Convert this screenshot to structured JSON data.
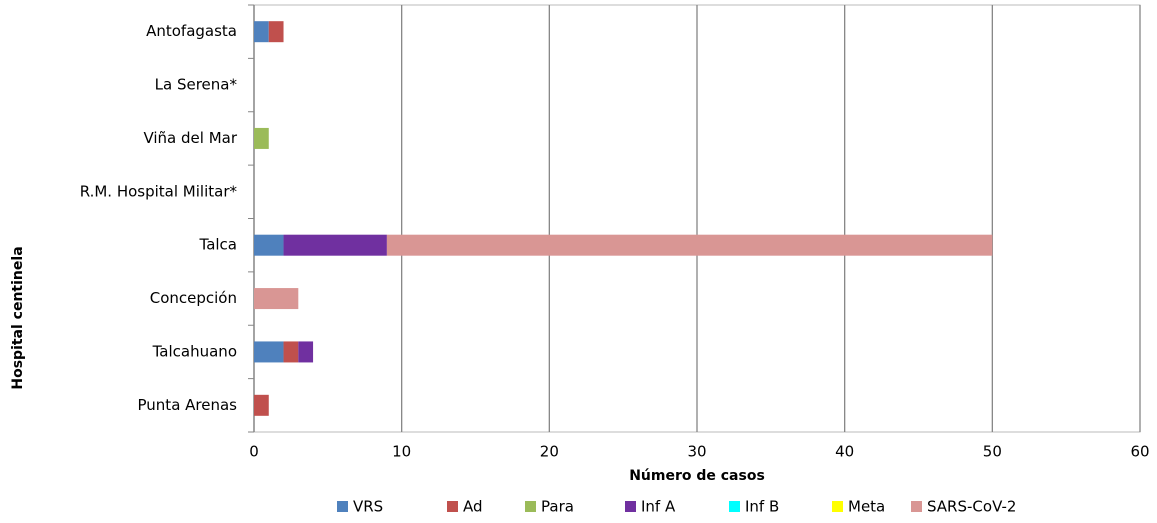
{
  "chart_data": {
    "type": "stacked-barh",
    "categories": [
      "Antofagasta",
      "La Serena*",
      "Viña del Mar",
      "R.M. Hospital Militar*",
      "Talca",
      "Concepción",
      "Talcahuano",
      "Punta Arenas"
    ],
    "series": [
      {
        "name": "VRS",
        "color": "#4f81bd",
        "values": [
          1,
          0,
          0,
          0,
          2,
          0,
          2,
          0
        ]
      },
      {
        "name": "Ad",
        "color": "#c0504d",
        "values": [
          1,
          0,
          0,
          0,
          0,
          0,
          1,
          1
        ]
      },
      {
        "name": "Para",
        "color": "#9bbb59",
        "values": [
          0,
          0,
          1,
          0,
          0,
          0,
          0,
          0
        ]
      },
      {
        "name": "Inf A",
        "color": "#7030a0",
        "values": [
          0,
          0,
          0,
          0,
          7,
          0,
          1,
          0
        ]
      },
      {
        "name": "Inf B",
        "color": "#00ffff",
        "values": [
          0,
          0,
          0,
          0,
          0,
          0,
          0,
          0
        ]
      },
      {
        "name": "Meta",
        "color": "#ffff00",
        "values": [
          0,
          0,
          0,
          0,
          0,
          0,
          0,
          0
        ]
      },
      {
        "name": "SARS-CoV-2",
        "color": "#d99694",
        "values": [
          0,
          0,
          0,
          0,
          41,
          3,
          0,
          0
        ]
      }
    ],
    "xlim": [
      0,
      60
    ],
    "xticks": [
      0,
      10,
      20,
      30,
      40,
      50,
      60
    ],
    "grid": true,
    "xlabel": "Número de casos",
    "ylabel": "Hospital centinela",
    "legend": "bottom"
  }
}
